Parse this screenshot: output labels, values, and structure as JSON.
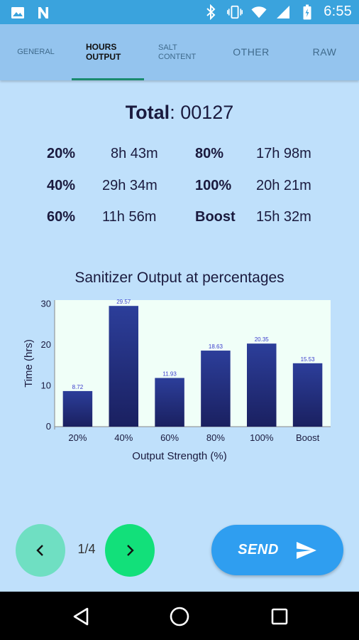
{
  "status_bar": {
    "time": "6:55",
    "icons": [
      "image-icon",
      "n-logo-icon",
      "bluetooth-icon",
      "vibrate-icon",
      "wifi-icon",
      "signal-icon",
      "battery-icon"
    ]
  },
  "tabs": [
    {
      "label": "GENERAL",
      "active": false
    },
    {
      "label": "HOURS OUTPUT",
      "active": true
    },
    {
      "label": "SALT CONTENT",
      "active": false
    },
    {
      "label": "OTHER",
      "active": false
    },
    {
      "label": "RAW",
      "active": false
    }
  ],
  "total": {
    "label": "Total",
    "separator": ":",
    "value": "00127"
  },
  "stats": [
    {
      "label": "20%",
      "value": "8h 43m"
    },
    {
      "label": "80%",
      "value": "17h 98m"
    },
    {
      "label": "40%",
      "value": "29h 34m"
    },
    {
      "label": "100%",
      "value": "20h 21m"
    },
    {
      "label": "60%",
      "value": "11h 56m"
    },
    {
      "label": "Boost",
      "value": "15h 32m"
    }
  ],
  "chart_data": {
    "type": "bar",
    "title": "Sanitizer Output at percentages",
    "xlabel": "Output Strength (%)",
    "ylabel": "Time (hrs)",
    "categories": [
      "20%",
      "40%",
      "60%",
      "80%",
      "100%",
      "Boost"
    ],
    "values": [
      8.72,
      29.57,
      11.93,
      18.63,
      20.35,
      15.53
    ],
    "value_labels": [
      "8.72",
      "29.57",
      "11.93",
      "18.63",
      "20.35",
      "15.53"
    ],
    "yticks": [
      "0",
      "10",
      "20",
      "30"
    ],
    "ylim": [
      0,
      31
    ],
    "grid": false,
    "colors": {
      "bar_top": "#2c3e9a",
      "bar_bottom": "#1a2060",
      "plot_bg": "#f0fff8",
      "value_label": "#3a3acc"
    }
  },
  "pager": {
    "current": "1/4"
  },
  "send": {
    "label": "SEND"
  },
  "colors": {
    "status_bar": "#3aa3dd",
    "tab_bar": "#94c4ee",
    "background": "#bfe0fb",
    "accent": "#1a8a6e",
    "send": "#2f9ef0",
    "next": "#12e07a",
    "prev": "#6fdfc2"
  }
}
